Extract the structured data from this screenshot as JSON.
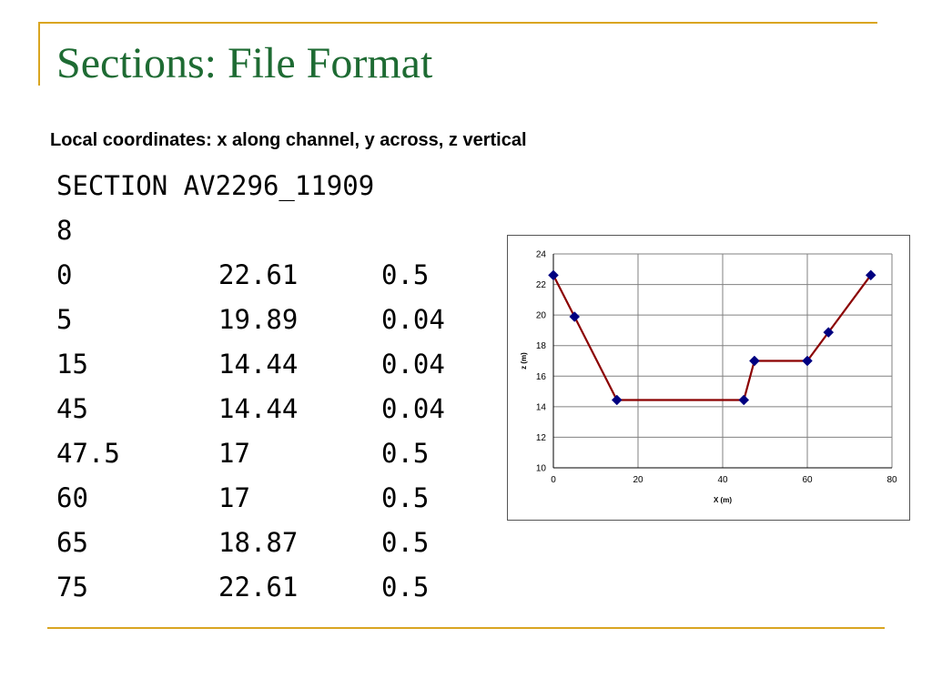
{
  "slide": {
    "title": "Sections: File Format",
    "subtitle": "Local coordinates: x along channel, y across, z vertical"
  },
  "file_listing": {
    "header": "SECTION AV2296_11909",
    "count": "8",
    "rows": [
      {
        "x": "0",
        "z": "22.61",
        "n": "0.5"
      },
      {
        "x": "5",
        "z": "19.89",
        "n": "0.04"
      },
      {
        "x": "15",
        "z": "14.44",
        "n": "0.04"
      },
      {
        "x": "45",
        "z": "14.44",
        "n": "0.04"
      },
      {
        "x": "47.5",
        "z": "17",
        "n": "0.5"
      },
      {
        "x": "60",
        "z": "17",
        "n": "0.5"
      },
      {
        "x": "65",
        "z": "18.87",
        "n": "0.5"
      },
      {
        "x": "75",
        "z": "22.61",
        "n": "0.5"
      }
    ]
  },
  "chart_data": {
    "type": "line",
    "title": "",
    "xlabel": "X (m)",
    "ylabel": "z (m)",
    "x": [
      0,
      5,
      15,
      45,
      47.5,
      60,
      65,
      75
    ],
    "series": [
      {
        "values": [
          22.61,
          19.89,
          14.44,
          14.44,
          17,
          17,
          18.87,
          22.61
        ]
      }
    ],
    "xlim": [
      0,
      80
    ],
    "ylim": [
      10,
      24
    ],
    "x_ticks": [
      0,
      20,
      40,
      60,
      80
    ],
    "y_ticks": [
      10,
      12,
      14,
      16,
      18,
      20,
      22,
      24
    ],
    "grid": true,
    "legend": "none",
    "line_color": "#8b0000",
    "marker_color": "#000080"
  }
}
